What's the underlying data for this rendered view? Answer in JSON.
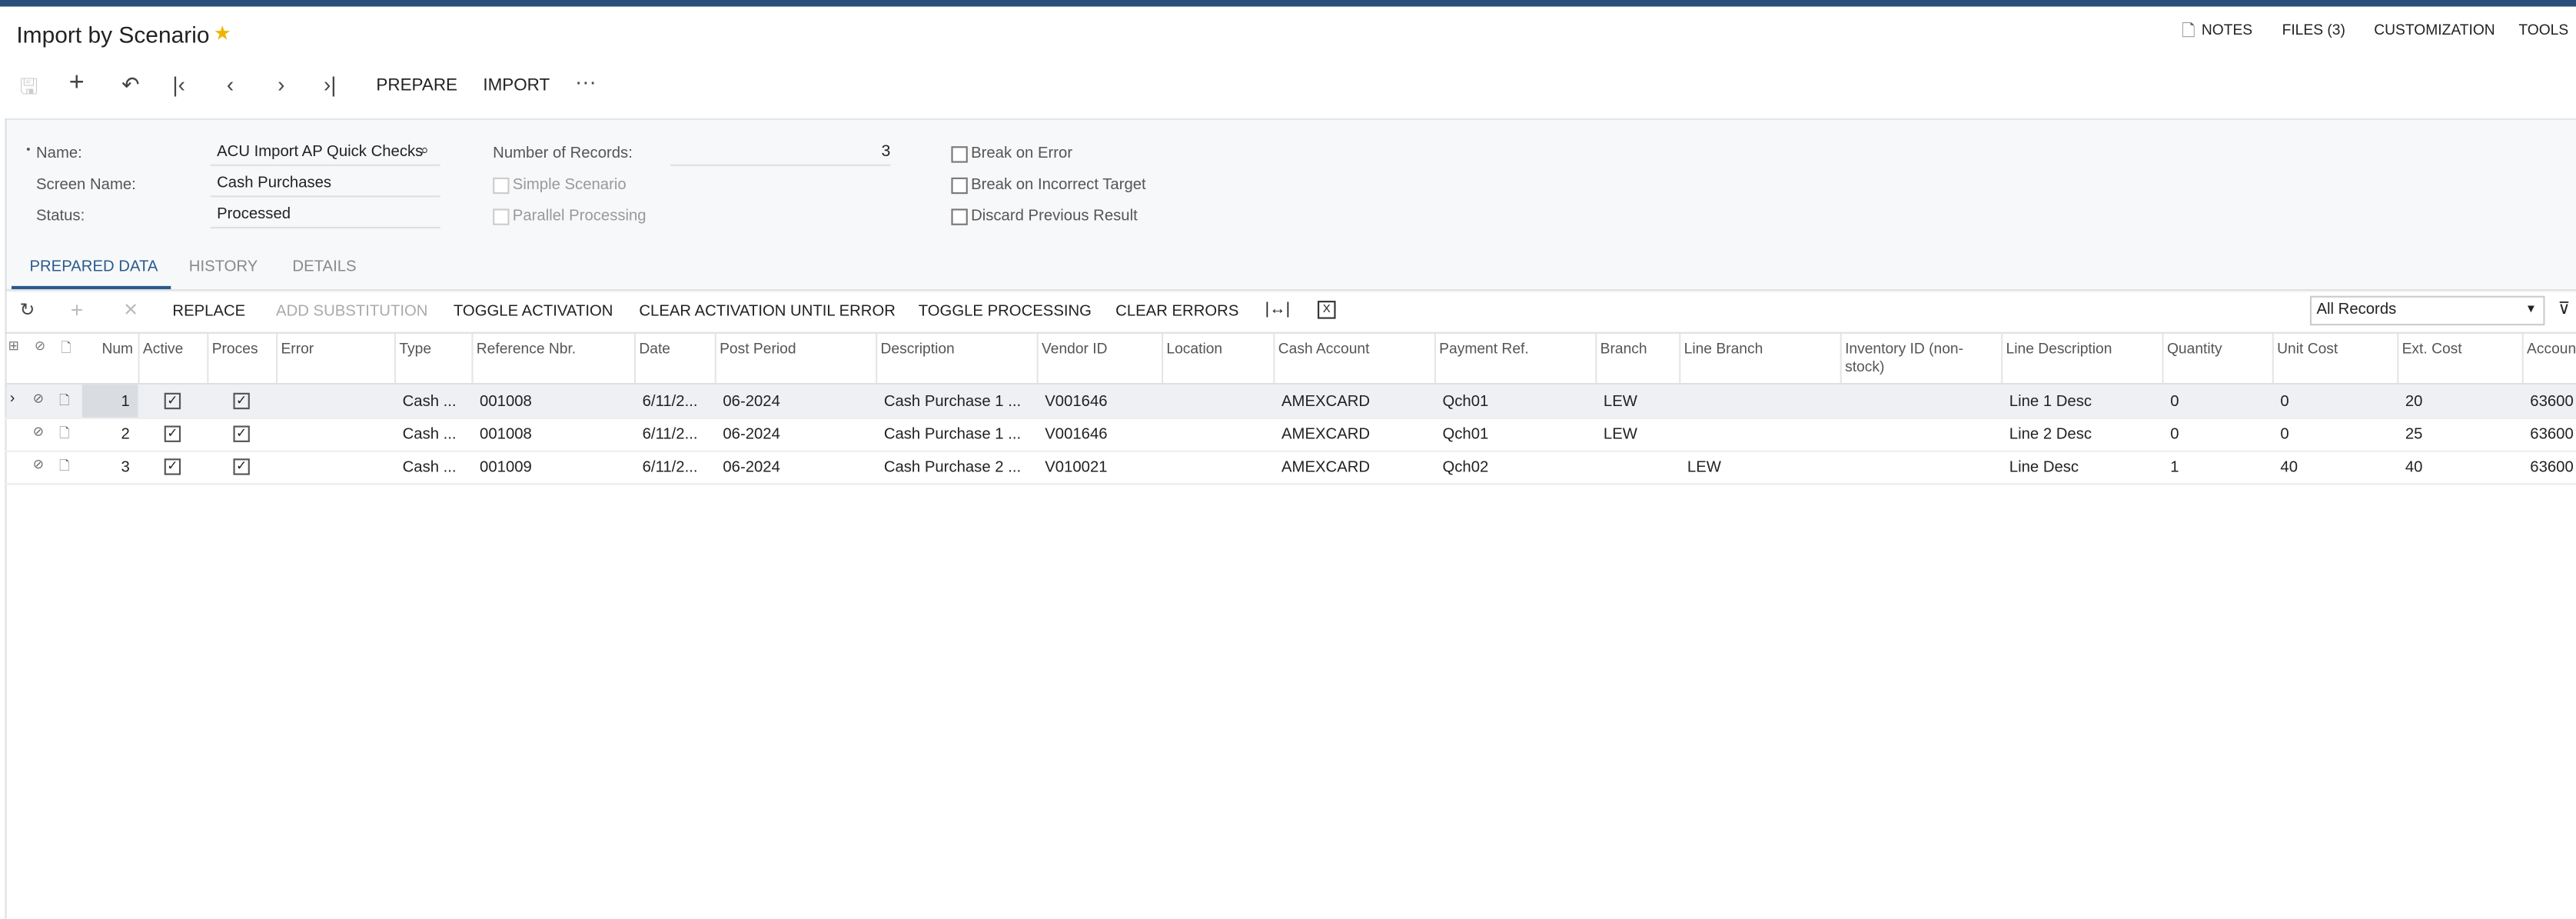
{
  "header": {
    "title": "Import by Scenario",
    "links": [
      "NOTES",
      "FILES (3)",
      "CUSTOMIZATION",
      "TOOLS"
    ]
  },
  "toolbar": {
    "buttons": [
      "PREPARE",
      "IMPORT"
    ]
  },
  "form": {
    "fields": [
      {
        "label": "Name:",
        "value": "ACU Import AP Quick Checks"
      },
      {
        "label": "Screen Name:",
        "value": "Cash Purchases"
      },
      {
        "label": "Status:",
        "value": "Processed"
      }
    ],
    "number_of_records": {
      "label": "Number of Records:",
      "value": 3
    },
    "options": [
      {
        "label": "Simple Scenario",
        "checked": false
      },
      {
        "label": "Parallel Processing",
        "checked": false
      }
    ],
    "flags": [
      {
        "label": "Break on Error",
        "checked": false
      },
      {
        "label": "Break on Incorrect Target",
        "checked": false
      },
      {
        "label": "Discard Previous Result",
        "checked": false
      }
    ]
  },
  "tabs": [
    "PREPARED DATA",
    "HISTORY",
    "DETAILS"
  ],
  "grid": {
    "toolbar": [
      "REPLACE",
      "ADD SUBSTITUTION",
      "TOGGLE ACTIVATION",
      "CLEAR ACTIVATION UNTIL ERROR",
      "TOGGLE PROCESSING",
      "CLEAR ERRORS"
    ],
    "filter": "All Records",
    "columns": [
      "Num",
      "Active",
      "Proces",
      "Error",
      "Type",
      "Reference Nbr.",
      "Date",
      "Post Period",
      "Description",
      "Vendor ID",
      "Location",
      "Cash Account",
      "Payment Ref.",
      "Branch",
      "Line Branch",
      "Inventory ID (non-stock)",
      "Line Description",
      "Quantity",
      "Unit Cost",
      "Ext. Cost",
      "Accoun"
    ],
    "rows": [
      [
        1,
        true,
        true,
        "",
        "Cash ...",
        "001008",
        "6/11/2...",
        "06-2024",
        "Cash Purchase 1 ...",
        "V001646",
        "",
        "AMEXCARD",
        "Qch01",
        "LEW",
        "",
        "",
        "Line 1 Desc",
        0,
        0,
        20,
        "63600"
      ],
      [
        2,
        true,
        true,
        "",
        "Cash ...",
        "001008",
        "6/11/2...",
        "06-2024",
        "Cash Purchase 1 ...",
        "V001646",
        "",
        "AMEXCARD",
        "Qch01",
        "LEW",
        "",
        "",
        "Line 2 Desc",
        0,
        0,
        25,
        "63600"
      ],
      [
        3,
        true,
        true,
        "",
        "Cash ...",
        "001009",
        "6/11/2...",
        "06-2024",
        "Cash Purchase 2 ...",
        "V010021",
        "",
        "AMEXCARD",
        "Qch02",
        "",
        "LEW",
        "",
        "Line Desc",
        1,
        40,
        40,
        "63600"
      ]
    ]
  }
}
